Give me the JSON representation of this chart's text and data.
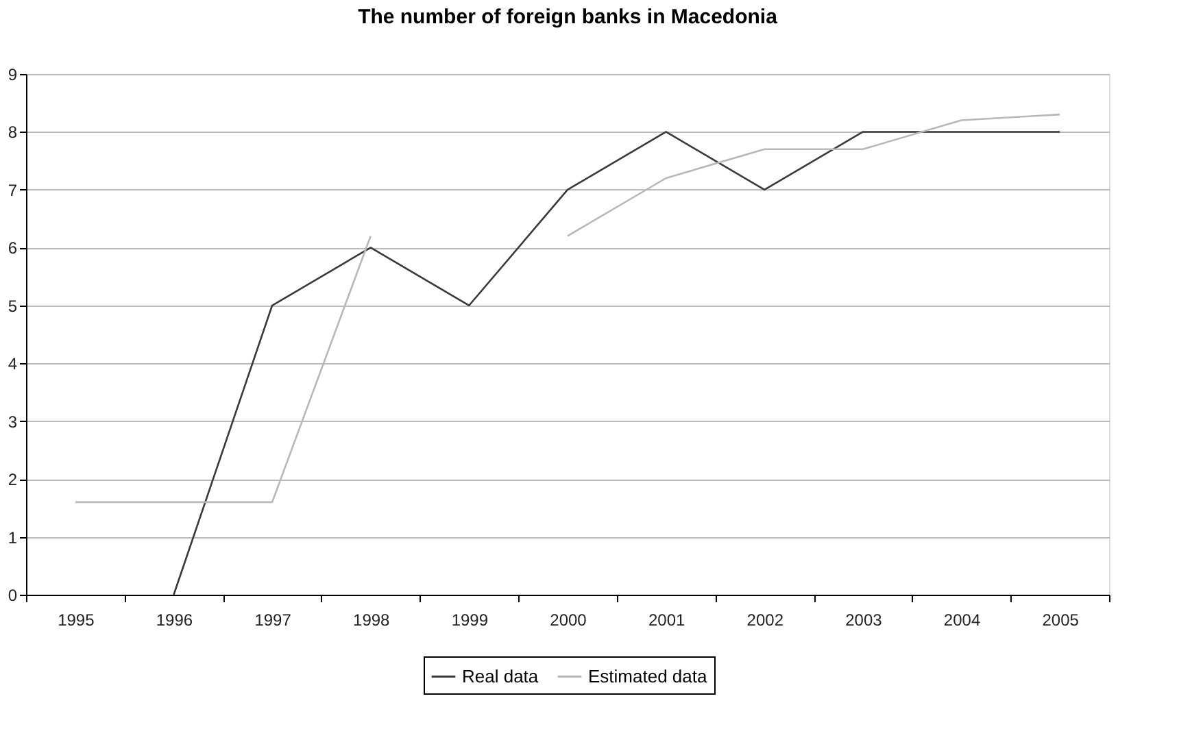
{
  "chart_data": {
    "type": "line",
    "title": "The number of foreign banks in Macedonia",
    "categories": [
      "1995",
      "1996",
      "1997",
      "1998",
      "1999",
      "2000",
      "2001",
      "2002",
      "2003",
      "2004",
      "2005"
    ],
    "series": [
      {
        "name": "Real data",
        "color": "#3a3a3a",
        "values": [
          null,
          0,
          5,
          6,
          5,
          7,
          8,
          7,
          8,
          8,
          8
        ]
      },
      {
        "name": "Estimated data",
        "color": "#b8b8b8",
        "values": [
          1.6,
          1.6,
          1.6,
          6.2,
          null,
          6.2,
          7.2,
          7.7,
          7.7,
          8.2,
          8.3
        ]
      }
    ],
    "ylim": [
      0,
      9
    ],
    "yticks": [
      0,
      1,
      2,
      3,
      4,
      5,
      6,
      7,
      8,
      9
    ],
    "grid": "y",
    "legend": "bottom",
    "marker": "none",
    "line_style": "solid"
  }
}
